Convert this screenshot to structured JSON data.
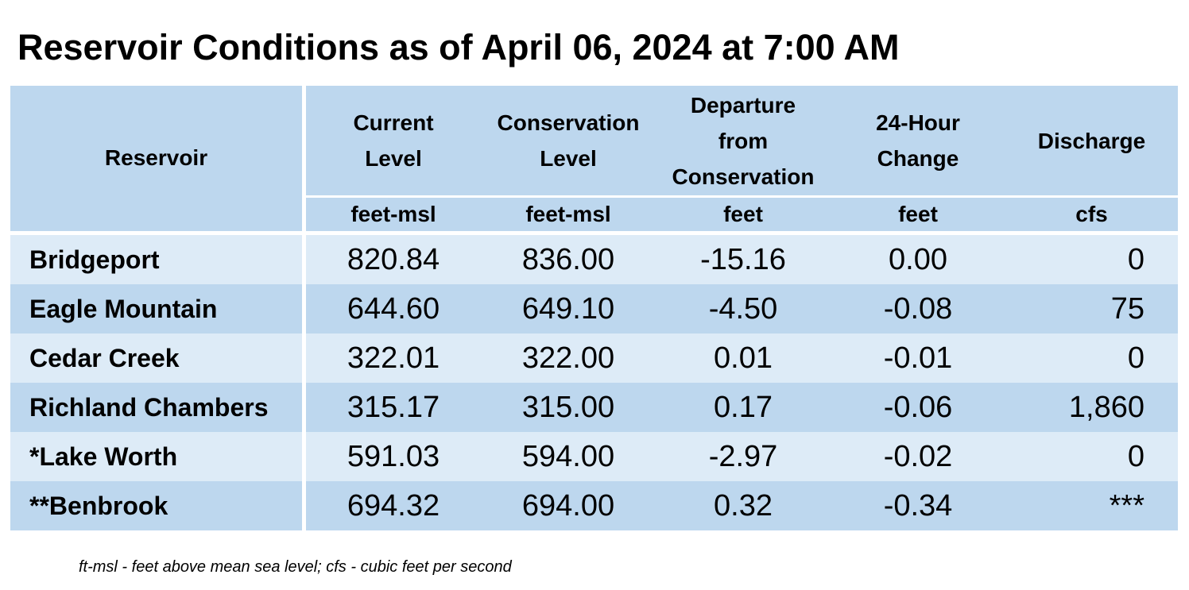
{
  "title": "Reservoir Conditions as of April 06, 2024 at 7:00 AM",
  "colors": {
    "header_bg": "#bdd7ee",
    "row_light": "#ddebf7",
    "row_dark": "#bdd7ee",
    "separator": "#ffffff"
  },
  "table": {
    "headers": [
      {
        "lines": [
          "Reservoir"
        ],
        "unit": ""
      },
      {
        "lines": [
          "Current",
          "Level"
        ],
        "unit": "feet-msl"
      },
      {
        "lines": [
          "Conservation",
          "Level"
        ],
        "unit": "feet-msl"
      },
      {
        "lines": [
          "Departure",
          "from",
          "Conservation"
        ],
        "unit": "feet"
      },
      {
        "lines": [
          "24-Hour",
          "Change"
        ],
        "unit": "feet"
      },
      {
        "lines": [
          "Discharge"
        ],
        "unit": "cfs"
      }
    ],
    "rows": [
      {
        "name": "Bridgeport",
        "current": "820.84",
        "conservation": "836.00",
        "departure": "-15.16",
        "change": "0.00",
        "discharge": "0"
      },
      {
        "name": "Eagle Mountain",
        "current": "644.60",
        "conservation": "649.10",
        "departure": "-4.50",
        "change": "-0.08",
        "discharge": "75"
      },
      {
        "name": "Cedar Creek",
        "current": "322.01",
        "conservation": "322.00",
        "departure": "0.01",
        "change": "-0.01",
        "discharge": "0"
      },
      {
        "name": "Richland Chambers",
        "current": "315.17",
        "conservation": "315.00",
        "departure": "0.17",
        "change": "-0.06",
        "discharge": "1,860"
      },
      {
        "name": "*Lake Worth",
        "current": "591.03",
        "conservation": "594.00",
        "departure": "-2.97",
        "change": "-0.02",
        "discharge": "0"
      },
      {
        "name": "**Benbrook",
        "current": "694.32",
        "conservation": "694.00",
        "departure": "0.32",
        "change": "-0.34",
        "discharge": "***"
      }
    ]
  },
  "footnote": "ft-msl - feet above mean sea level; cfs - cubic feet per second"
}
